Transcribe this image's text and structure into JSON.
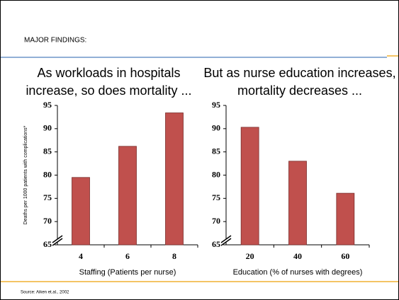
{
  "header": "MAJOR FINDINGS:",
  "source": "Source: Aiken et.al., 2002",
  "chart_data": [
    {
      "type": "bar",
      "title": "As workloads in hospitals increase, so does mortality ...",
      "ylabel": "Deaths per 1000 patients with complications*",
      "xlabel": "Staffing (Patients per nurse)",
      "categories": [
        4,
        6,
        8
      ],
      "values": [
        79.5,
        86.2,
        93.4
      ],
      "color": "#c0504d",
      "ylim": [
        65,
        95
      ],
      "yticks": [
        65,
        70,
        75,
        80,
        85,
        90,
        95
      ]
    },
    {
      "type": "bar",
      "title": "But as nurse education increases, mortality decreases ...",
      "xlabel": "Education (% of nurses with degrees)",
      "categories": [
        20,
        40,
        60
      ],
      "values": [
        90.3,
        83.0,
        76.1
      ],
      "color": "#c0504d",
      "ylim": [
        65,
        95
      ],
      "yticks": [
        65,
        70,
        75,
        80,
        85,
        90,
        95
      ]
    }
  ]
}
